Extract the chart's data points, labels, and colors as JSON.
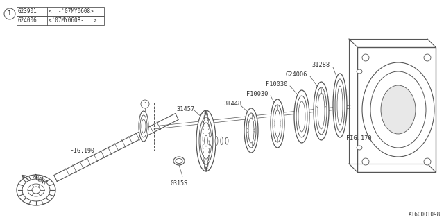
{
  "bg_color": "#ffffff",
  "line_color": "#555555",
  "text_color": "#333333",
  "legend_rows": [
    {
      "code": "G23901",
      "desc": "<  -'07MY0608>"
    },
    {
      "code": "G24006",
      "desc": "<'07MY0608-   >"
    }
  ],
  "part_number_bottom_right": "A160001098",
  "shaft_color": "#666666",
  "gear_tooth_count": 24
}
